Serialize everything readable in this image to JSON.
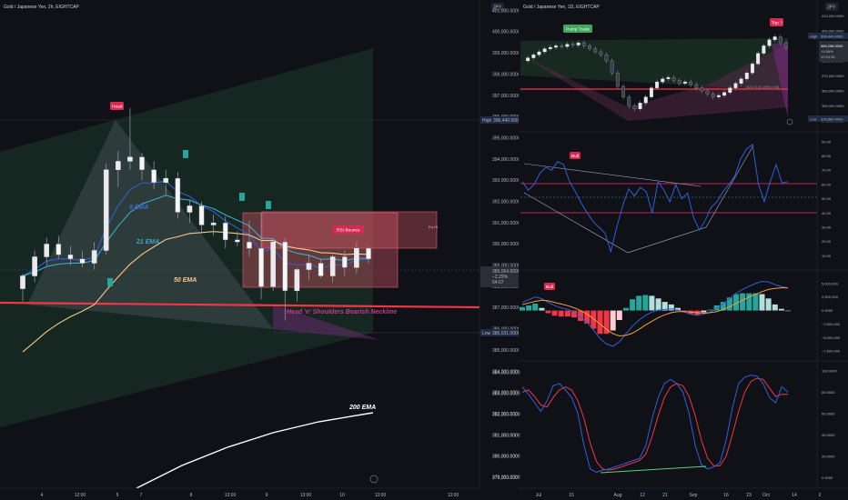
{
  "left_chart": {
    "header": "Gold / Japanese Yen, 2h, EIGHTCAP",
    "currency": "JPY",
    "y_ticks": [
      401000,
      400000,
      399000,
      398000,
      397000,
      396000,
      395000,
      394000,
      393000,
      392000,
      391000,
      390000,
      389000,
      388000,
      387000,
      386000,
      385000,
      384000,
      383000,
      382000,
      381000,
      380000,
      379000
    ],
    "y_tick_labels": [
      "401,000.0000",
      "400,000.0000",
      "399,000.0000",
      "398,000.0000",
      "397,000.0000",
      "396,000.0000",
      "395,000.0000",
      "394,000.0000",
      "393,000.0000",
      "392,000.0000",
      "391,000.0000",
      "390,000.0000",
      "389,000.0000",
      "388,000.0000",
      "387,000.0000",
      "386,000.0000",
      "385,000.0000",
      "384,000.0000",
      "383,000.0000",
      "382,000.0000",
      "381,000.0000",
      "380,000.0000",
      "379,000.0000"
    ],
    "x_labels": [
      "12:00",
      "4",
      "5",
      "7",
      "8",
      "13:00",
      "9",
      "13:00",
      "10",
      "13:00",
      "13:00"
    ],
    "high_tag": {
      "label": "High",
      "value": "396,440.0000"
    },
    "low_tag": {
      "label": "Low",
      "value": "386,031.0000"
    },
    "price_tag": {
      "value": "389,064.0000",
      "change": "−2.29%",
      "time": "54:07"
    },
    "labels": {
      "head": "Head",
      "ema9": "9 EMA",
      "ema21": "21 EMA",
      "ema50": "50 EMA",
      "ema200": "200 EMA",
      "neckline": "Head 'n' Shoulders Bearish Neckline",
      "rsi_bounce": "RSI Bounce",
      "zone_tag": "Eq Ht"
    },
    "candles": [
      {
        "o": 387900,
        "h": 388600,
        "l": 387300,
        "c": 388500
      },
      {
        "o": 388500,
        "h": 389700,
        "l": 388200,
        "c": 389400
      },
      {
        "o": 389400,
        "h": 390300,
        "l": 389000,
        "c": 390000
      },
      {
        "o": 390000,
        "h": 390400,
        "l": 389300,
        "c": 389500
      },
      {
        "o": 389500,
        "h": 389900,
        "l": 389000,
        "c": 389300
      },
      {
        "o": 389300,
        "h": 389700,
        "l": 388900,
        "c": 389100
      },
      {
        "o": 389100,
        "h": 390100,
        "l": 388800,
        "c": 389700
      },
      {
        "o": 389700,
        "h": 393800,
        "l": 389500,
        "c": 393500
      },
      {
        "o": 393500,
        "h": 394400,
        "l": 392700,
        "c": 393900
      },
      {
        "o": 393900,
        "h": 396400,
        "l": 393500,
        "c": 394100
      },
      {
        "o": 394100,
        "h": 394300,
        "l": 393000,
        "c": 393500
      },
      {
        "o": 393500,
        "h": 393900,
        "l": 392600,
        "c": 392900
      },
      {
        "o": 392900,
        "h": 393500,
        "l": 392300,
        "c": 393100
      },
      {
        "o": 393100,
        "h": 393400,
        "l": 391200,
        "c": 391500
      },
      {
        "o": 391500,
        "h": 392100,
        "l": 391000,
        "c": 391800
      },
      {
        "o": 391800,
        "h": 392000,
        "l": 390500,
        "c": 390900
      },
      {
        "o": 390900,
        "h": 391400,
        "l": 390400,
        "c": 391000
      },
      {
        "o": 391000,
        "h": 391300,
        "l": 389800,
        "c": 390200
      },
      {
        "o": 390200,
        "h": 390600,
        "l": 389900,
        "c": 390100
      },
      {
        "o": 390100,
        "h": 391100,
        "l": 389400,
        "c": 389800
      },
      {
        "o": 389800,
        "h": 391500,
        "l": 387400,
        "c": 388000
      },
      {
        "o": 388000,
        "h": 390200,
        "l": 387800,
        "c": 390100
      },
      {
        "o": 390100,
        "h": 390300,
        "l": 386400,
        "c": 387800
      },
      {
        "o": 387800,
        "h": 388900,
        "l": 387300,
        "c": 388800
      },
      {
        "o": 388800,
        "h": 389500,
        "l": 388300,
        "c": 389100
      },
      {
        "o": 389100,
        "h": 389300,
        "l": 388400,
        "c": 388500
      },
      {
        "o": 388500,
        "h": 389500,
        "l": 388200,
        "c": 389400
      },
      {
        "o": 389400,
        "h": 389700,
        "l": 388500,
        "c": 388900
      },
      {
        "o": 388900,
        "h": 390100,
        "l": 388600,
        "c": 389800
      },
      {
        "o": 389800,
        "h": 389900,
        "l": 389100,
        "c": 389300
      }
    ]
  },
  "right_price": {
    "header": "Gold / Japanese Yen, 1D, EIGHTCAP",
    "currency": "JPY",
    "y_ticks": [
      410000,
      400000,
      390000,
      380000,
      370000,
      360000,
      350000,
      340000
    ],
    "y_tick_labels": [
      "410,000.0000",
      "400,000.0000",
      "390,000.0000",
      "380,000.0000",
      "370,000.0000",
      "360,000.0000",
      "350,000.0000",
      "340,000.0000"
    ],
    "high_tag": {
      "label": "High",
      "value": "396,440.0000"
    },
    "low_tag": {
      "label": "Low",
      "value": "335,880.0000"
    },
    "price_tag": {
      "value": "389,258.0000",
      "change": "+4.86%",
      "time": "19:53:35"
    },
    "pump_label": "Pump Trade",
    "top_label": "Top ?",
    "stats": "403.71 (0.16%) 0.06"
  },
  "rsi": {
    "tag": "Bull",
    "y_ticks": [
      90,
      80,
      70,
      60,
      50,
      40,
      30,
      20,
      10
    ],
    "y_tick_labels": [
      "90.00",
      "80.00",
      "70.00",
      "60.00",
      "50.00",
      "40.00",
      "30.00",
      "20.00",
      "10.00"
    ],
    "values": [
      62,
      56,
      60,
      68,
      72,
      70,
      76,
      74,
      62,
      55,
      47,
      40,
      34,
      30,
      26,
      13,
      30,
      45,
      57,
      52,
      58,
      55,
      40,
      62,
      56,
      48,
      60,
      50,
      54,
      37,
      28,
      35,
      44,
      48,
      55,
      60,
      66,
      78,
      85,
      88,
      60,
      48,
      62,
      74,
      61,
      62
    ]
  },
  "macd": {
    "tag": "Bull",
    "y_ticks": [
      5000000,
      2500000,
      0,
      -2500000,
      -5000000,
      -7500000
    ],
    "y_tick_labels": [
      "5,000,000",
      "2,500,000",
      "0.0000",
      "−2,500,000",
      "−5,000,000",
      "−7,500,000"
    ],
    "macd_values": [
      1500000,
      2000000,
      2500000,
      2200000,
      1500000,
      900000,
      500000,
      200000,
      -300000,
      -1200000,
      -2200000,
      -3600000,
      -5200000,
      -6200000,
      -6600000,
      -5800000,
      -4300000,
      -2900000,
      -1800000,
      -900000,
      -300000,
      100000,
      200000,
      300000,
      100000,
      -300000,
      -700000,
      -900000,
      -700000,
      -300000,
      400000,
      1200000,
      2200000,
      3200000,
      3900000,
      4500000,
      5000000,
      5400000,
      5300000,
      4800000,
      4400000,
      4200000
    ],
    "signal_values": [
      1100000,
      1400000,
      1700000,
      1900000,
      1800000,
      1500000,
      1200000,
      900000,
      500000,
      0,
      -700000,
      -1500000,
      -2500000,
      -3500000,
      -4300000,
      -4700000,
      -4600000,
      -4200000,
      -3500000,
      -2700000,
      -2000000,
      -1300000,
      -800000,
      -400000,
      -200000,
      -200000,
      -300000,
      -400000,
      -500000,
      -400000,
      -200000,
      200000,
      700000,
      1300000,
      1900000,
      2500000,
      3000000,
      3500000,
      3900000,
      4100000,
      4200000,
      4200000
    ]
  },
  "stoch": {
    "y_ticks": [
      100,
      80,
      60,
      40,
      20,
      0
    ],
    "y_tick_labels": [
      "100.0000",
      "80.0000",
      "60.0000",
      "40.0000",
      "20.0000",
      "0.0000"
    ],
    "right_ticks": [
      384000,
      383000,
      382000,
      381000,
      380000,
      379000
    ],
    "right_tick_labels": [
      "384,000.0000",
      "383,000.0000",
      "382,000.0000",
      "381,000.0000",
      "380,000.0000",
      "379,000.0000"
    ],
    "k_values": [
      85,
      78,
      70,
      62,
      72,
      86,
      88,
      82,
      75,
      60,
      30,
      8,
      5,
      7,
      8,
      10,
      12,
      14,
      16,
      18,
      30,
      55,
      75,
      88,
      92,
      88,
      80,
      60,
      30,
      12,
      8,
      10,
      14,
      35,
      65,
      88,
      94,
      96,
      95,
      88,
      75,
      70,
      85,
      80
    ],
    "d_values": [
      80,
      82,
      76,
      68,
      66,
      75,
      82,
      85,
      82,
      72,
      55,
      32,
      15,
      8,
      7,
      8,
      10,
      12,
      14,
      16,
      22,
      38,
      58,
      75,
      85,
      88,
      86,
      76,
      58,
      35,
      18,
      11,
      11,
      20,
      40,
      62,
      80,
      90,
      93,
      92,
      84,
      76,
      78,
      78
    ]
  },
  "right_x_labels": [
    "Jul",
    "15",
    "Aug",
    "12",
    "21",
    "Sep",
    "16",
    "23",
    "Oct",
    "14",
    "2"
  ]
}
